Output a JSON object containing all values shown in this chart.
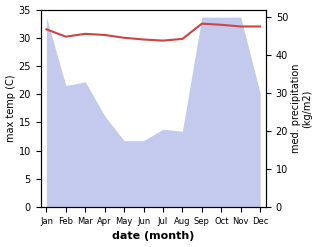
{
  "months": [
    "Jan",
    "Feb",
    "Mar",
    "Apr",
    "May",
    "Jun",
    "Jul",
    "Aug",
    "Sep",
    "Oct",
    "Nov",
    "Dec"
  ],
  "month_indices": [
    0,
    1,
    2,
    3,
    4,
    5,
    6,
    7,
    8,
    9,
    10,
    11
  ],
  "temperature": [
    31.5,
    30.2,
    30.7,
    30.5,
    30.0,
    29.7,
    29.5,
    29.8,
    32.5,
    32.3,
    32.0,
    32.0
  ],
  "precipitation": [
    50,
    32,
    33,
    24,
    17.5,
    17.5,
    20.5,
    20.0,
    50,
    50,
    50,
    30
  ],
  "temp_color": "#cc4444",
  "precip_color": "#aab4e8",
  "precip_alpha": 0.7,
  "temp_ylim": [
    0,
    35
  ],
  "precip_ylim": [
    0,
    52
  ],
  "temp_ylabel": "max temp (C)",
  "precip_ylabel": "med. precipitation\n(kg/m2)",
  "xlabel": "date (month)",
  "background_color": "#ffffff"
}
